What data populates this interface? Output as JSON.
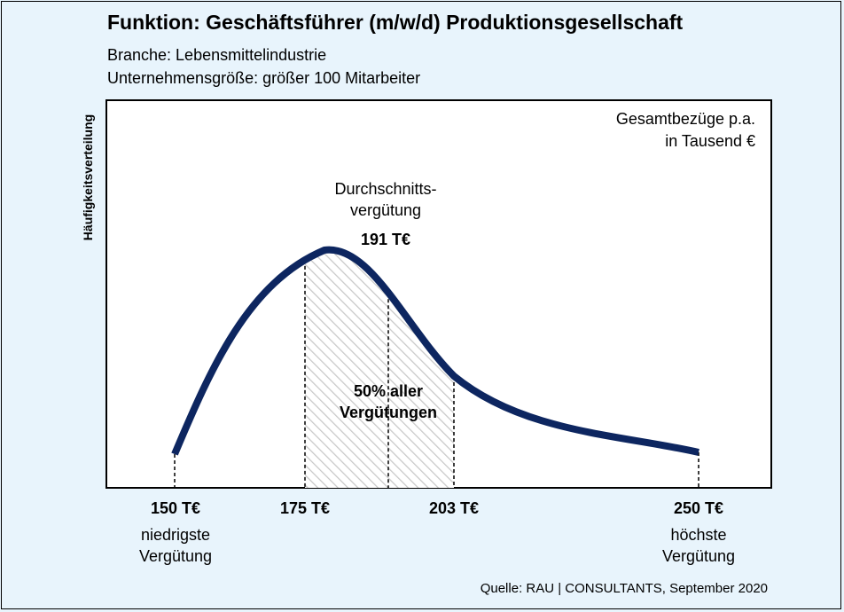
{
  "chart_data": {
    "type": "area",
    "title": "Funktion: Geschäftsführer (m/w/d) Produktionsgesellschaft",
    "subtitle_lines": [
      "Branche: Lebensmittelindustrie",
      "Unternehmensgröße: größer 100 Mitarbeiter"
    ],
    "ylabel": "Häufigkeitsverteilung",
    "unit_lines": [
      "Gesamtbezüge p.a.",
      "in Tausend €"
    ],
    "source": "Quelle: RAU | CONSULTANTS, September 2020",
    "grid": false,
    "markers": [
      {
        "id": "min",
        "value": 150,
        "label": "150 T€",
        "desc": [
          "niedrigste",
          "Vergütung"
        ]
      },
      {
        "id": "q1",
        "value": 175,
        "label": "175 T€",
        "desc": []
      },
      {
        "id": "q3",
        "value": 203,
        "label": "203 T€",
        "desc": []
      },
      {
        "id": "max",
        "value": 250,
        "label": "250 T€",
        "desc": [
          "höchste",
          "Vergütung"
        ]
      }
    ],
    "average": {
      "value": 191,
      "label": "191 T€",
      "text_lines": [
        "Durchschnitts-",
        "vergütung"
      ]
    },
    "band": {
      "from": 175,
      "to": 203,
      "text_lines": [
        "50% aller",
        "Vergütungen"
      ]
    },
    "colors": {
      "curve": "#0d2660",
      "band_hatch": "#c8c8c8",
      "background": "#e8f4fc",
      "plot": "#ffffff"
    }
  }
}
